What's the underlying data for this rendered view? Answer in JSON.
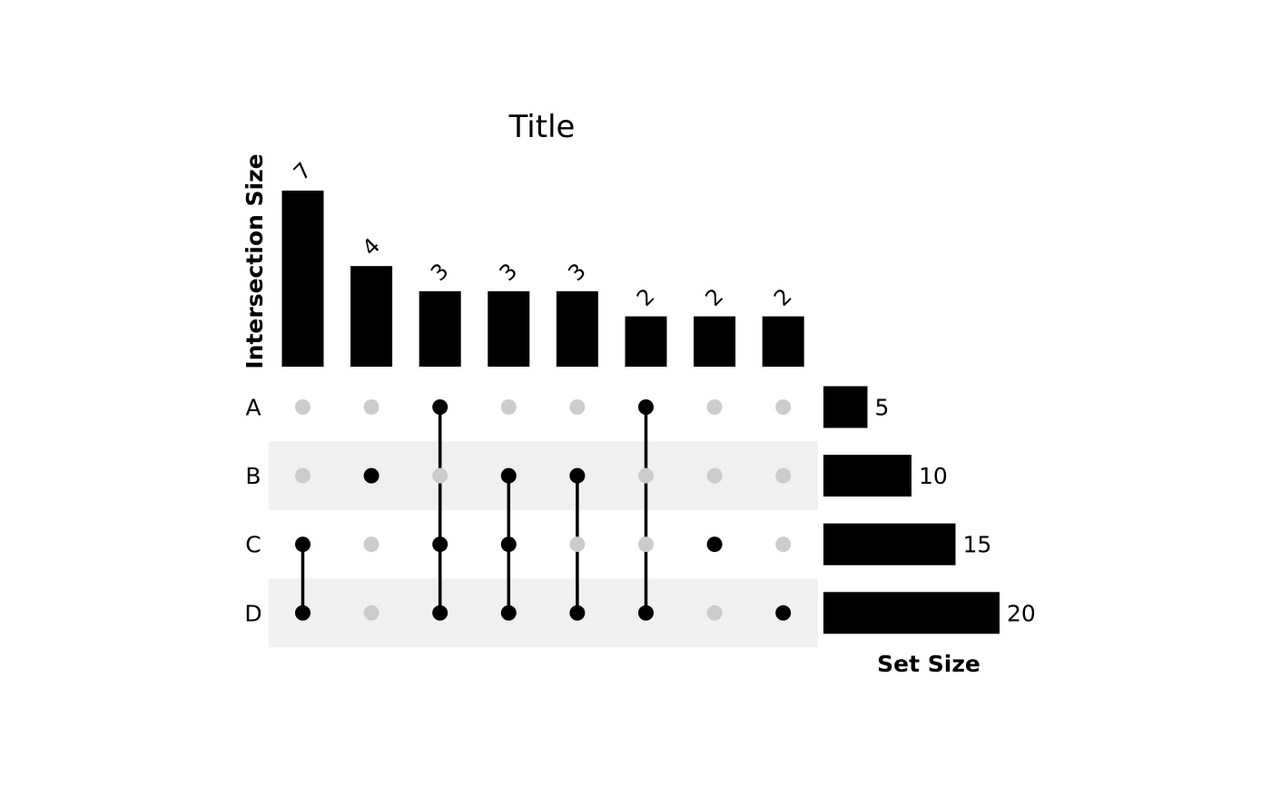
{
  "chart_data": {
    "type": "upset",
    "title": "Title",
    "intersection_axis_label": "Intersection Size",
    "set_size_axis_label": "Set Size",
    "sets": [
      "A",
      "B",
      "C",
      "D"
    ],
    "set_sizes": [
      5,
      10,
      15,
      20
    ],
    "intersections": [
      {
        "sets": [
          "C",
          "D"
        ],
        "size": 7
      },
      {
        "sets": [
          "B"
        ],
        "size": 4
      },
      {
        "sets": [
          "A",
          "C",
          "D"
        ],
        "size": 3
      },
      {
        "sets": [
          "B",
          "C",
          "D"
        ],
        "size": 3
      },
      {
        "sets": [
          "B",
          "D"
        ],
        "size": 3
      },
      {
        "sets": [
          "A",
          "D"
        ],
        "size": 2
      },
      {
        "sets": [
          "C"
        ],
        "size": 2
      },
      {
        "sets": [
          "D"
        ],
        "size": 2
      }
    ],
    "bar_color": "#000000",
    "active_dot_color": "#000000",
    "inactive_dot_color": "#cccccc",
    "stripe_color": "#f0f0f0"
  }
}
